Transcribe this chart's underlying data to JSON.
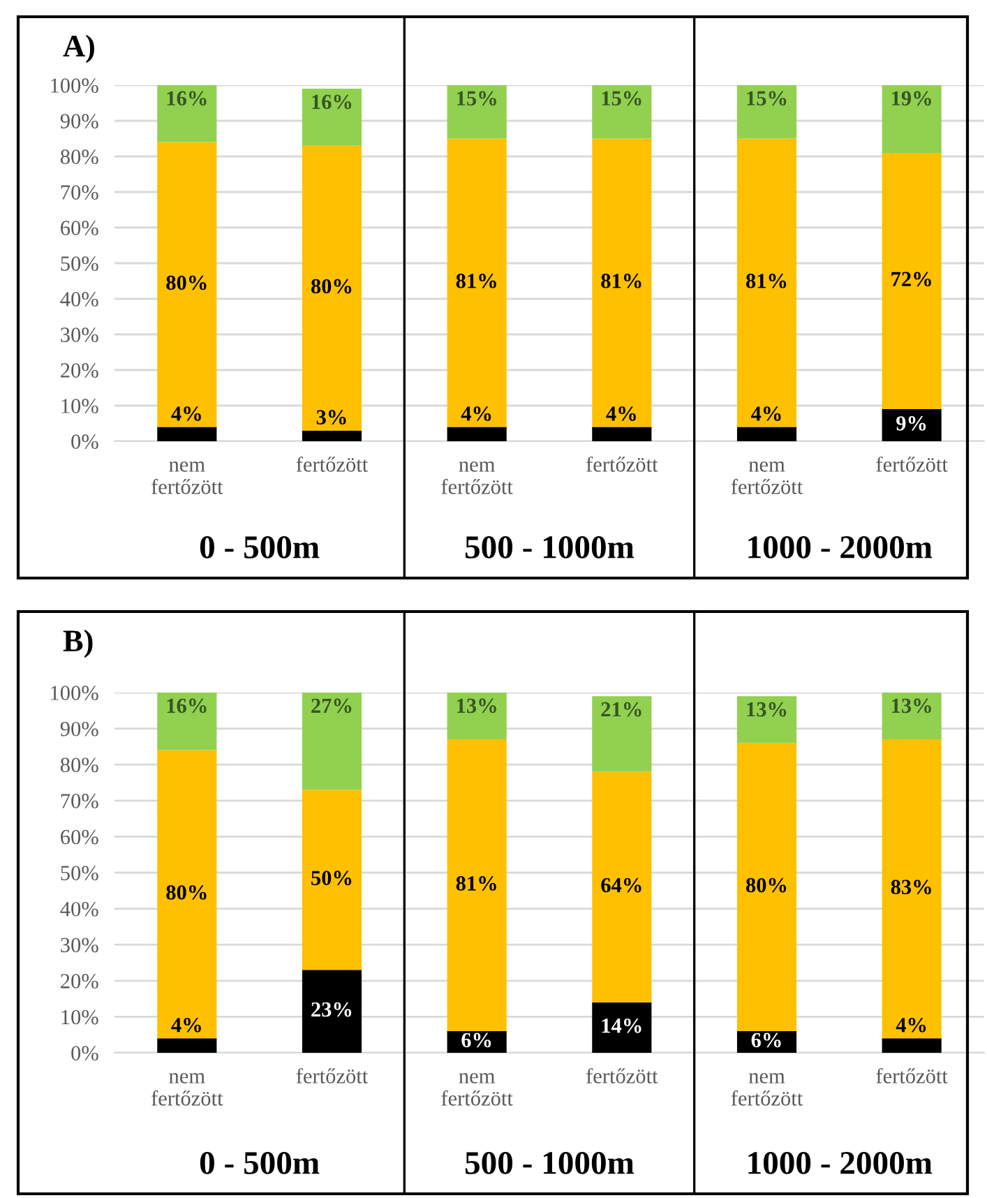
{
  "chart_data": [
    {
      "type": "bar",
      "title": "A)",
      "stacked": true,
      "grid": "y",
      "categories": [
        "nem\nfertőzött",
        "fertőzött",
        "nem\nfertőzött",
        "fertőzött",
        "nem\nfertőzött",
        "fertőzött"
      ],
      "series": [
        {
          "color": "#000000",
          "values": [
            4,
            3,
            4,
            4,
            4,
            9
          ],
          "value_labels": [
            "4%",
            "3%",
            "4%",
            "4%",
            "4%",
            "9%"
          ]
        },
        {
          "color": "#ffc000",
          "values": [
            80,
            80,
            81,
            81,
            81,
            72
          ],
          "value_labels": [
            "80%",
            "80%",
            "81%",
            "81%",
            "81%",
            "72%"
          ]
        },
        {
          "color": "#92d050",
          "values": [
            16,
            16,
            15,
            15,
            15,
            19
          ],
          "value_labels": [
            "16%",
            "16%",
            "15%",
            "15%",
            "15%",
            "19%"
          ]
        }
      ],
      "ylim": [
        0,
        100
      ],
      "yticks": [
        {
          "value": 0,
          "label": "0%"
        },
        {
          "value": 10,
          "label": "10%"
        },
        {
          "value": 20,
          "label": "20%"
        },
        {
          "value": 30,
          "label": "30%"
        },
        {
          "value": 40,
          "label": "40%"
        },
        {
          "value": 50,
          "label": "50%"
        },
        {
          "value": 60,
          "label": "60%"
        },
        {
          "value": 70,
          "label": "70%"
        },
        {
          "value": 80,
          "label": "80%"
        },
        {
          "value": 90,
          "label": "90%"
        },
        {
          "value": 100,
          "label": "100%"
        }
      ],
      "annotations": [
        "0 - 500m",
        "500 - 1000m",
        "1000 - 2000m"
      ]
    },
    {
      "type": "bar",
      "title": "B)",
      "stacked": true,
      "grid": "y",
      "categories": [
        "nem\nfertőzött",
        "fertőzött",
        "nem\nfertőzött",
        "fertőzött",
        "nem\nfertőzött",
        "fertőzött"
      ],
      "series": [
        {
          "color": "#000000",
          "values": [
            4,
            23,
            6,
            14,
            6,
            4
          ],
          "value_labels": [
            "4%",
            "23%",
            "6%",
            "14%",
            "6%",
            "4%"
          ]
        },
        {
          "color": "#ffc000",
          "values": [
            80,
            50,
            81,
            64,
            80,
            83
          ],
          "value_labels": [
            "80%",
            "50%",
            "81%",
            "64%",
            "80%",
            "83%"
          ]
        },
        {
          "color": "#92d050",
          "values": [
            16,
            27,
            13,
            21,
            13,
            13
          ],
          "value_labels": [
            "16%",
            "27%",
            "13%",
            "21%",
            "13%",
            "13%"
          ]
        }
      ],
      "ylim": [
        0,
        100
      ],
      "yticks": [
        {
          "value": 0,
          "label": "0%"
        },
        {
          "value": 10,
          "label": "10%"
        },
        {
          "value": 20,
          "label": "20%"
        },
        {
          "value": 30,
          "label": "30%"
        },
        {
          "value": 40,
          "label": "40%"
        },
        {
          "value": 50,
          "label": "50%"
        },
        {
          "value": 60,
          "label": "60%"
        },
        {
          "value": 70,
          "label": "70%"
        },
        {
          "value": 80,
          "label": "80%"
        },
        {
          "value": 90,
          "label": "90%"
        },
        {
          "value": 100,
          "label": "100%"
        }
      ],
      "annotations": [
        "0 - 500m",
        "500 - 1000m",
        "1000 - 2000m"
      ]
    }
  ]
}
